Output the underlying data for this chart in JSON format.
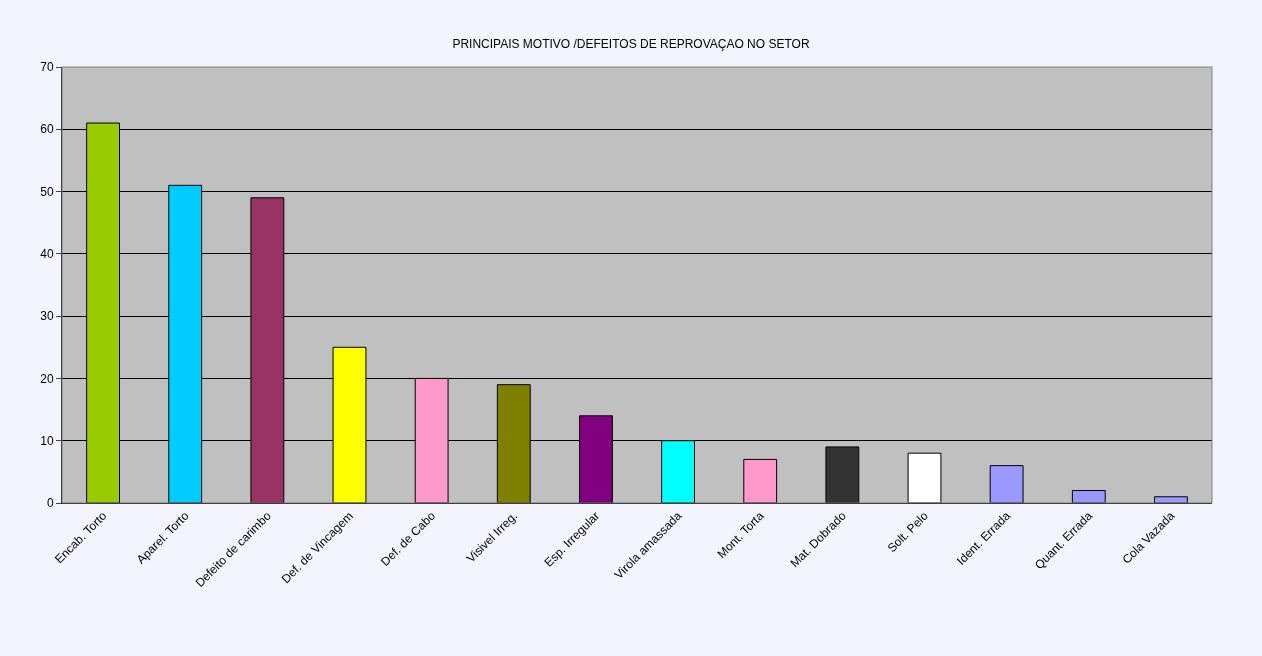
{
  "chart_data": {
    "type": "bar",
    "title": "PRINCIPAIS MOTIVO /DEFEITOS DE REPROVAÇAO NO SETOR",
    "categories": [
      "Encab. Torto",
      "Aparel. Torto",
      "Defeito de carimbo",
      "Def. de Vincagem",
      "Def. de Cabo",
      "Visivel Irreg.",
      "Esp. Irregular",
      "Virola amassada",
      "Mont. Torta",
      "Mat. Dobrado",
      "Solt. Pelo",
      "Ident. Errada",
      "Quant. Errada",
      "Cola Vazada"
    ],
    "values": [
      61,
      51,
      49,
      25,
      20,
      19,
      14,
      10,
      7,
      9,
      8,
      6,
      2,
      1
    ],
    "colors": [
      "#99cc00",
      "#00ccff",
      "#993366",
      "#ffff00",
      "#ff99cc",
      "#808000",
      "#800080",
      "#00ffff",
      "#ff99cc",
      "#333333",
      "#ffffff",
      "#9999ff",
      "#9999ff",
      "#9999ff"
    ],
    "ylim": [
      0,
      70
    ],
    "yticks": [
      0,
      10,
      20,
      30,
      40,
      50,
      60,
      70
    ],
    "grid": "y"
  }
}
